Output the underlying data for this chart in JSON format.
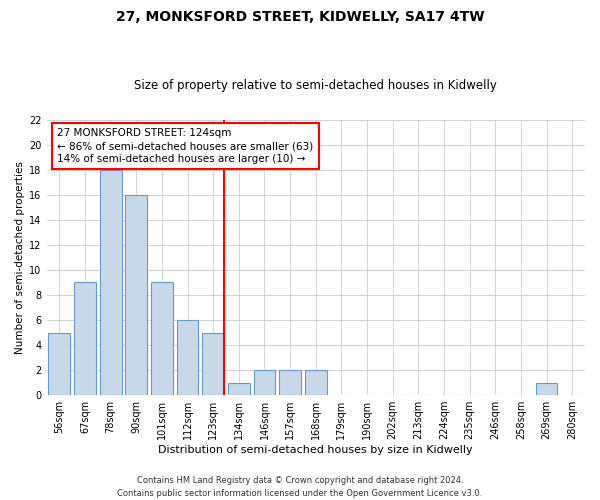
{
  "title": "27, MONKSFORD STREET, KIDWELLY, SA17 4TW",
  "subtitle": "Size of property relative to semi-detached houses in Kidwelly",
  "xlabel": "Distribution of semi-detached houses by size in Kidwelly",
  "ylabel": "Number of semi-detached properties",
  "categories": [
    "56sqm",
    "67sqm",
    "78sqm",
    "90sqm",
    "101sqm",
    "112sqm",
    "123sqm",
    "134sqm",
    "146sqm",
    "157sqm",
    "168sqm",
    "179sqm",
    "190sqm",
    "202sqm",
    "213sqm",
    "224sqm",
    "235sqm",
    "246sqm",
    "258sqm",
    "269sqm",
    "280sqm"
  ],
  "values": [
    5,
    9,
    18,
    16,
    9,
    6,
    5,
    1,
    2,
    2,
    2,
    0,
    0,
    0,
    0,
    0,
    0,
    0,
    0,
    1,
    0
  ],
  "bar_color": "#c8d8e8",
  "bar_edge_color": "#6699cc",
  "red_line_bar_index": 6,
  "annotation_line1": "27 MONKSFORD STREET: 124sqm",
  "annotation_line2": "← 86% of semi-detached houses are smaller (63)",
  "annotation_line3": "14% of semi-detached houses are larger (10) →",
  "ylim": [
    0,
    22
  ],
  "yticks": [
    0,
    2,
    4,
    6,
    8,
    10,
    12,
    14,
    16,
    18,
    20,
    22
  ],
  "footer1": "Contains HM Land Registry data © Crown copyright and database right 2024.",
  "footer2": "Contains public sector information licensed under the Open Government Licence v3.0.",
  "bg_color": "#ffffff",
  "grid_color": "#cccccc",
  "title_fontsize": 10,
  "subtitle_fontsize": 8.5,
  "xlabel_fontsize": 8,
  "ylabel_fontsize": 7.5,
  "tick_fontsize": 7,
  "annotation_fontsize": 7.5,
  "footer_fontsize": 6
}
